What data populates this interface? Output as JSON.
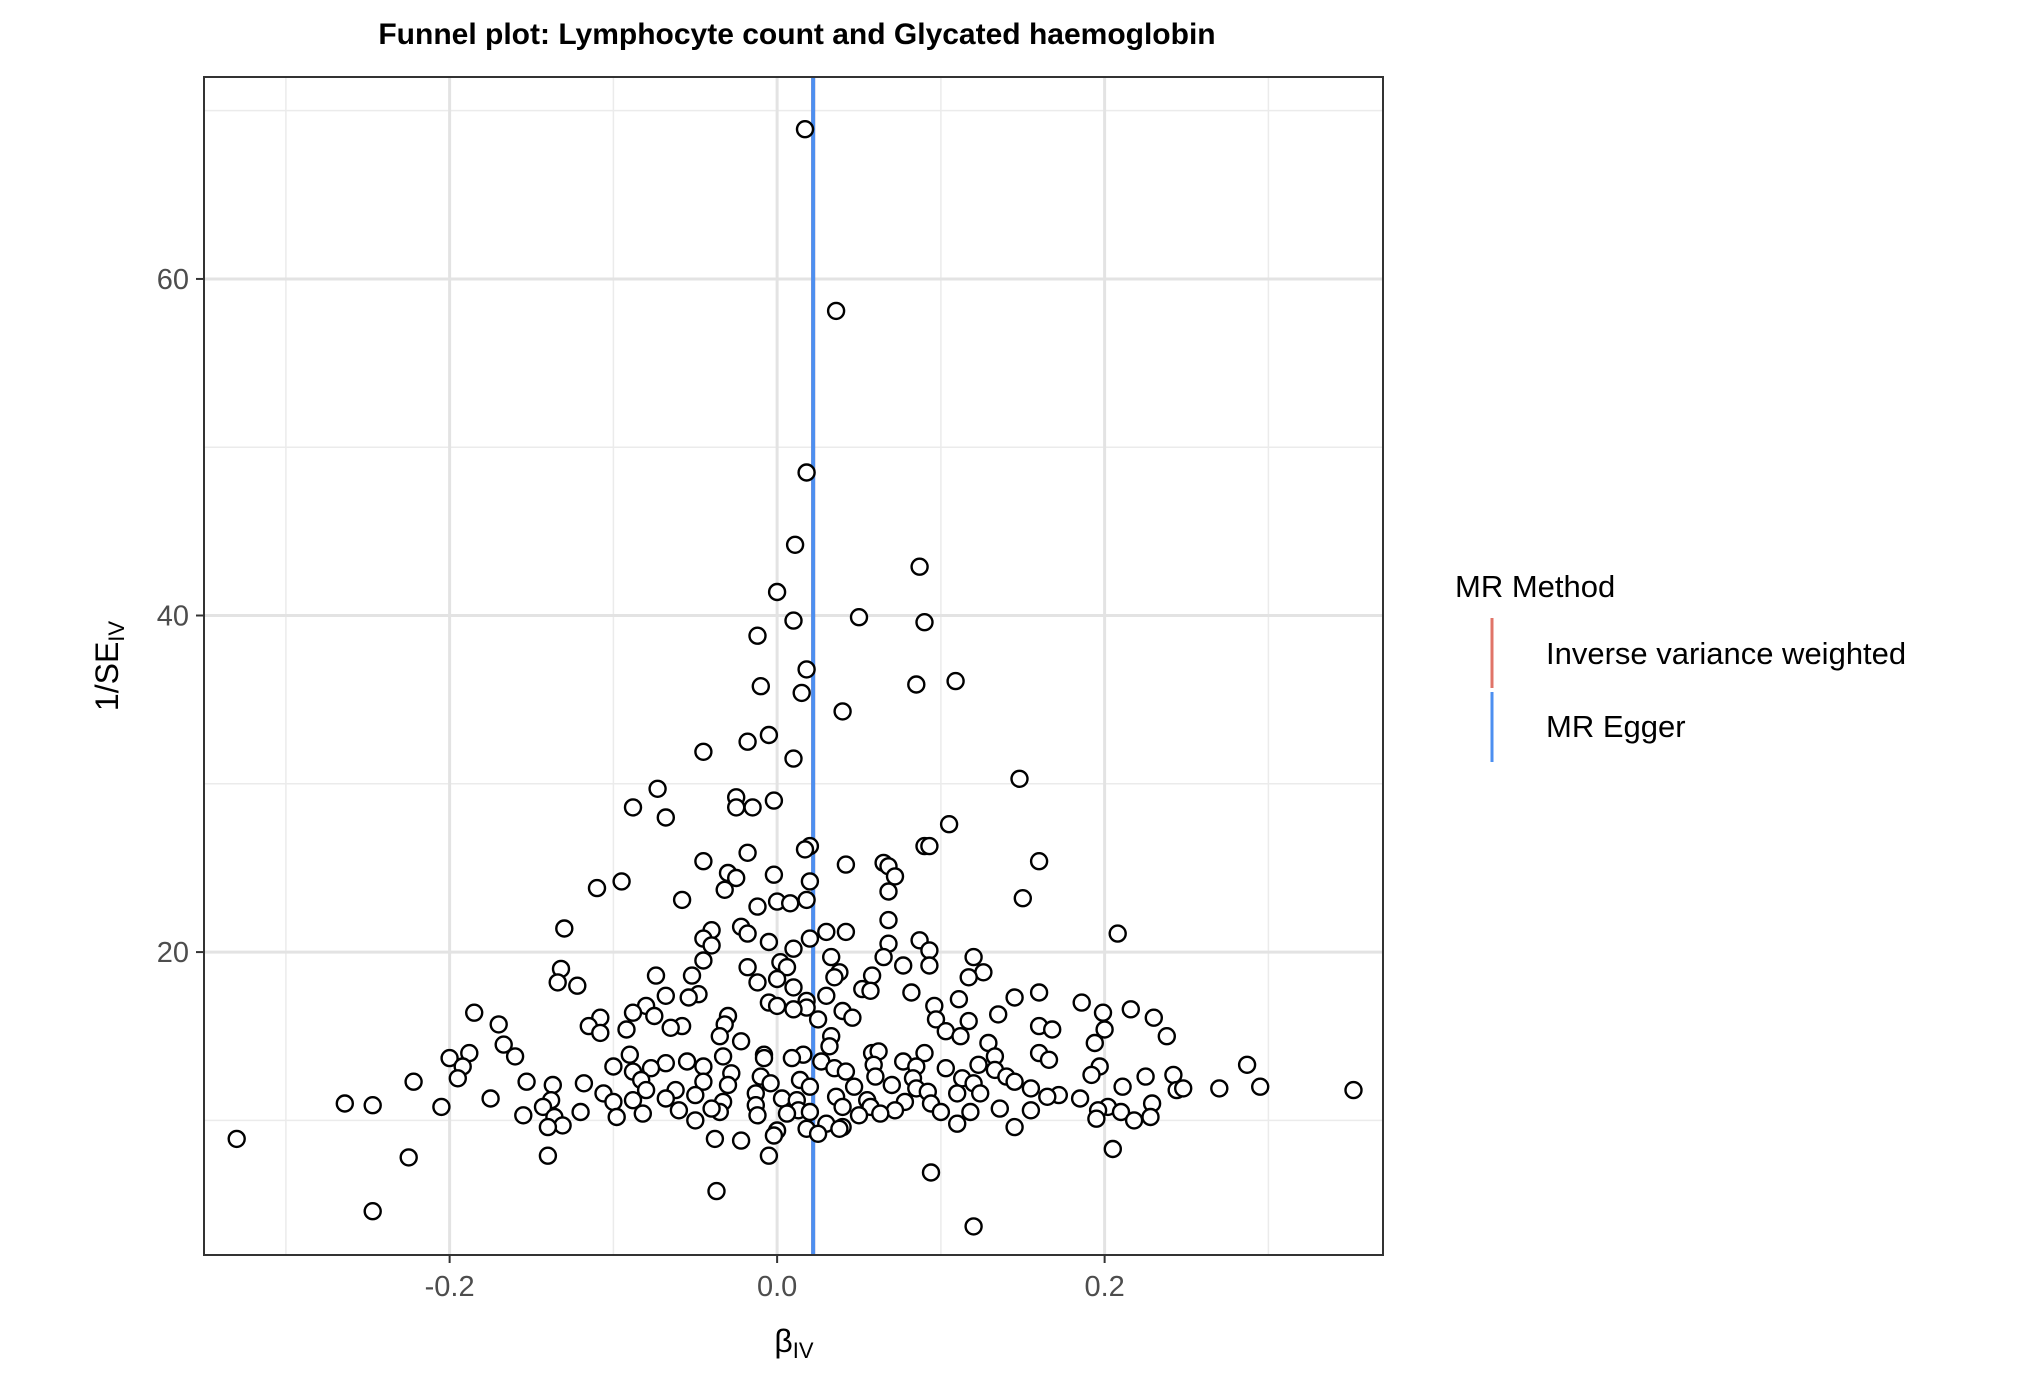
{
  "chart_data": {
    "type": "scatter",
    "title": "Funnel plot: Lymphocyte count and Glycated haemoglobin",
    "xlabel": {
      "main": "β",
      "sub": "IV"
    },
    "ylabel": {
      "main": "1/SE",
      "sub": "IV"
    },
    "xlim": [
      -0.35,
      0.37
    ],
    "ylim": [
      2,
      72
    ],
    "x_ticks": [
      -0.2,
      0.0,
      0.2
    ],
    "x_tick_labels": [
      "-0.2",
      "0.0",
      "0.2"
    ],
    "y_ticks": [
      20,
      40,
      60
    ],
    "y_tick_labels": [
      "20",
      "40",
      "60"
    ],
    "grid": true,
    "legend": {
      "title": "MR Method",
      "placement": "right",
      "entries": [
        {
          "label": "Inverse variance weighted",
          "color": "#e07468"
        },
        {
          "label": "MR Egger",
          "color": "#4d8ff0"
        }
      ]
    },
    "lines": [
      {
        "method": "Inverse variance weighted",
        "x": 0.022,
        "color": "#e07468"
      },
      {
        "method": "MR Egger",
        "x": 0.022,
        "color": "#4d8ff0"
      }
    ],
    "points": [
      [
        0.017,
        68.9
      ],
      [
        0.036,
        58.1
      ],
      [
        0.018,
        48.5
      ],
      [
        0.011,
        44.2
      ],
      [
        0.087,
        42.9
      ],
      [
        0.0,
        41.4
      ],
      [
        0.05,
        39.9
      ],
      [
        0.01,
        39.7
      ],
      [
        0.09,
        39.6
      ],
      [
        -0.012,
        38.8
      ],
      [
        0.018,
        36.8
      ],
      [
        0.109,
        36.1
      ],
      [
        -0.01,
        35.8
      ],
      [
        0.085,
        35.9
      ],
      [
        0.015,
        35.4
      ],
      [
        0.04,
        34.3
      ],
      [
        -0.005,
        32.9
      ],
      [
        -0.018,
        32.5
      ],
      [
        -0.045,
        31.9
      ],
      [
        0.01,
        31.5
      ],
      [
        0.148,
        30.3
      ],
      [
        -0.073,
        29.7
      ],
      [
        -0.025,
        29.2
      ],
      [
        -0.002,
        29.0
      ],
      [
        -0.088,
        28.6
      ],
      [
        -0.015,
        28.6
      ],
      [
        -0.025,
        28.6
      ],
      [
        -0.068,
        28.0
      ],
      [
        0.105,
        27.6
      ],
      [
        0.09,
        26.3
      ],
      [
        0.02,
        26.3
      ],
      [
        0.093,
        26.3
      ],
      [
        0.017,
        26.1
      ],
      [
        -0.018,
        25.9
      ],
      [
        0.16,
        25.4
      ],
      [
        -0.045,
        25.4
      ],
      [
        0.042,
        25.2
      ],
      [
        0.065,
        25.3
      ],
      [
        0.068,
        25.1
      ],
      [
        -0.03,
        24.7
      ],
      [
        -0.002,
        24.6
      ],
      [
        0.072,
        24.5
      ],
      [
        -0.025,
        24.4
      ],
      [
        -0.095,
        24.2
      ],
      [
        0.02,
        24.2
      ],
      [
        -0.11,
        23.8
      ],
      [
        0.068,
        23.6
      ],
      [
        -0.032,
        23.7
      ],
      [
        0.15,
        23.2
      ],
      [
        -0.058,
        23.1
      ],
      [
        0.018,
        23.1
      ],
      [
        0.0,
        23.0
      ],
      [
        0.008,
        22.9
      ],
      [
        -0.012,
        22.7
      ],
      [
        0.068,
        21.9
      ],
      [
        -0.13,
        21.4
      ],
      [
        -0.04,
        21.3
      ],
      [
        0.03,
        21.2
      ],
      [
        -0.022,
        21.5
      ],
      [
        0.042,
        21.2
      ],
      [
        0.208,
        21.1
      ],
      [
        -0.018,
        21.1
      ],
      [
        0.02,
        20.8
      ],
      [
        -0.045,
        20.8
      ],
      [
        0.087,
        20.7
      ],
      [
        -0.005,
        20.6
      ],
      [
        0.068,
        20.5
      ],
      [
        -0.04,
        20.4
      ],
      [
        0.01,
        20.2
      ],
      [
        0.093,
        20.1
      ],
      [
        0.033,
        19.7
      ],
      [
        0.12,
        19.7
      ],
      [
        -0.045,
        19.5
      ],
      [
        0.002,
        19.4
      ],
      [
        -0.018,
        19.1
      ],
      [
        0.065,
        19.7
      ],
      [
        0.077,
        19.2
      ],
      [
        -0.132,
        19.0
      ],
      [
        0.093,
        19.2
      ],
      [
        0.006,
        19.1
      ],
      [
        0.038,
        18.8
      ],
      [
        0.126,
        18.8
      ],
      [
        0.117,
        18.5
      ],
      [
        -0.074,
        18.6
      ],
      [
        0.058,
        18.6
      ],
      [
        0.035,
        18.5
      ],
      [
        -0.052,
        18.6
      ],
      [
        0.0,
        18.4
      ],
      [
        -0.134,
        18.2
      ],
      [
        -0.012,
        18.2
      ],
      [
        -0.122,
        18.0
      ],
      [
        0.052,
        17.8
      ],
      [
        0.01,
        17.9
      ],
      [
        0.057,
        17.7
      ],
      [
        0.082,
        17.6
      ],
      [
        0.16,
        17.6
      ],
      [
        0.03,
        17.4
      ],
      [
        -0.068,
        17.4
      ],
      [
        -0.048,
        17.5
      ],
      [
        0.145,
        17.3
      ],
      [
        -0.054,
        17.3
      ],
      [
        0.018,
        17.1
      ],
      [
        0.186,
        17.0
      ],
      [
        0.111,
        17.2
      ],
      [
        -0.005,
        17.0
      ],
      [
        0.0,
        16.8
      ],
      [
        0.018,
        16.7
      ],
      [
        0.096,
        16.8
      ],
      [
        -0.08,
        16.8
      ],
      [
        0.04,
        16.5
      ],
      [
        -0.185,
        16.4
      ],
      [
        0.216,
        16.6
      ],
      [
        0.01,
        16.6
      ],
      [
        0.199,
        16.4
      ],
      [
        -0.088,
        16.4
      ],
      [
        0.135,
        16.3
      ],
      [
        -0.03,
        16.2
      ],
      [
        -0.075,
        16.2
      ],
      [
        0.025,
        16.0
      ],
      [
        0.097,
        16.0
      ],
      [
        0.046,
        16.1
      ],
      [
        0.23,
        16.1
      ],
      [
        -0.108,
        16.1
      ],
      [
        0.117,
        15.9
      ],
      [
        -0.17,
        15.7
      ],
      [
        -0.032,
        15.7
      ],
      [
        -0.058,
        15.6
      ],
      [
        -0.115,
        15.6
      ],
      [
        0.16,
        15.6
      ],
      [
        -0.065,
        15.5
      ],
      [
        0.2,
        15.4
      ],
      [
        0.103,
        15.3
      ],
      [
        -0.092,
        15.4
      ],
      [
        0.168,
        15.4
      ],
      [
        -0.108,
        15.2
      ],
      [
        0.238,
        15.0
      ],
      [
        0.033,
        15.0
      ],
      [
        -0.035,
        15.0
      ],
      [
        0.112,
        15.0
      ],
      [
        0.194,
        14.6
      ],
      [
        0.129,
        14.6
      ],
      [
        -0.022,
        14.7
      ],
      [
        -0.167,
        14.5
      ],
      [
        0.058,
        14.0
      ],
      [
        0.09,
        14.0
      ],
      [
        -0.188,
        14.0
      ],
      [
        0.032,
        14.4
      ],
      [
        0.062,
        14.1
      ],
      [
        0.016,
        13.9
      ],
      [
        -0.008,
        13.9
      ],
      [
        0.133,
        13.8
      ],
      [
        0.16,
        14.0
      ],
      [
        -0.09,
        13.9
      ],
      [
        0.077,
        13.5
      ],
      [
        -0.16,
        13.8
      ],
      [
        -0.2,
        13.7
      ],
      [
        -0.033,
        13.8
      ],
      [
        -0.008,
        13.7
      ],
      [
        0.009,
        13.7
      ],
      [
        0.027,
        13.5
      ],
      [
        0.197,
        13.2
      ],
      [
        0.166,
        13.6
      ],
      [
        -0.068,
        13.4
      ],
      [
        -0.045,
        13.2
      ],
      [
        0.059,
        13.3
      ],
      [
        0.085,
        13.2
      ],
      [
        0.123,
        13.3
      ],
      [
        -0.077,
        13.1
      ],
      [
        -0.055,
        13.5
      ],
      [
        0.035,
        13.1
      ],
      [
        -0.192,
        13.2
      ],
      [
        0.287,
        13.3
      ],
      [
        -0.1,
        13.2
      ],
      [
        0.133,
        13.0
      ],
      [
        0.042,
        12.9
      ],
      [
        -0.028,
        12.8
      ],
      [
        0.103,
        13.1
      ],
      [
        -0.088,
        12.9
      ],
      [
        0.192,
        12.7
      ],
      [
        0.14,
        12.6
      ],
      [
        -0.01,
        12.6
      ],
      [
        0.225,
        12.6
      ],
      [
        0.242,
        12.7
      ],
      [
        0.06,
        12.6
      ],
      [
        0.083,
        12.5
      ],
      [
        -0.195,
        12.5
      ],
      [
        -0.222,
        12.3
      ],
      [
        -0.045,
        12.3
      ],
      [
        0.113,
        12.5
      ],
      [
        -0.153,
        12.3
      ],
      [
        -0.083,
        12.4
      ],
      [
        0.014,
        12.4
      ],
      [
        0.145,
        12.3
      ],
      [
        -0.118,
        12.2
      ],
      [
        0.07,
        12.1
      ],
      [
        0.12,
        12.2
      ],
      [
        -0.004,
        12.2
      ],
      [
        0.244,
        11.8
      ],
      [
        0.047,
        12.0
      ],
      [
        0.02,
        12.0
      ],
      [
        0.248,
        11.9
      ],
      [
        0.085,
        11.9
      ],
      [
        0.352,
        11.8
      ],
      [
        -0.137,
        12.1
      ],
      [
        0.155,
        11.9
      ],
      [
        -0.062,
        11.8
      ],
      [
        -0.03,
        12.1
      ],
      [
        0.211,
        12.0
      ],
      [
        0.092,
        11.7
      ],
      [
        0.11,
        11.6
      ],
      [
        0.27,
        11.9
      ],
      [
        -0.08,
        11.8
      ],
      [
        0.172,
        11.5
      ],
      [
        -0.106,
        11.6
      ],
      [
        -0.013,
        11.6
      ],
      [
        0.124,
        11.6
      ],
      [
        -0.05,
        11.5
      ],
      [
        0.036,
        11.4
      ],
      [
        0.003,
        11.3
      ],
      [
        -0.138,
        11.2
      ],
      [
        0.229,
        11.0
      ],
      [
        0.012,
        11.2
      ],
      [
        -0.088,
        11.2
      ],
      [
        0.165,
        11.4
      ],
      [
        0.055,
        11.2
      ],
      [
        -0.033,
        11.1
      ],
      [
        0.078,
        11.1
      ],
      [
        -0.068,
        11.3
      ],
      [
        0.185,
        11.3
      ],
      [
        0.295,
        12.0
      ],
      [
        0.057,
        10.8
      ],
      [
        0.094,
        11.0
      ],
      [
        -0.205,
        10.8
      ],
      [
        -0.013,
        10.9
      ],
      [
        0.202,
        10.8
      ],
      [
        -0.264,
        11.0
      ],
      [
        -0.1,
        11.1
      ],
      [
        0.04,
        10.8
      ],
      [
        -0.175,
        11.3
      ],
      [
        -0.143,
        10.8
      ],
      [
        -0.06,
        10.6
      ],
      [
        0.013,
        10.6
      ],
      [
        -0.035,
        10.5
      ],
      [
        0.196,
        10.6
      ],
      [
        0.21,
        10.5
      ],
      [
        0.072,
        10.6
      ],
      [
        0.136,
        10.7
      ],
      [
        0.155,
        10.6
      ],
      [
        -0.04,
        10.7
      ],
      [
        0.1,
        10.5
      ],
      [
        0.006,
        10.4
      ],
      [
        -0.247,
        10.9
      ],
      [
        -0.12,
        10.5
      ],
      [
        0.118,
        10.5
      ],
      [
        0.02,
        10.5
      ],
      [
        -0.082,
        10.4
      ],
      [
        0.063,
        10.4
      ],
      [
        -0.155,
        10.3
      ],
      [
        -0.136,
        10.2
      ],
      [
        -0.098,
        10.2
      ],
      [
        0.05,
        10.3
      ],
      [
        0.228,
        10.2
      ],
      [
        -0.012,
        10.3
      ],
      [
        -0.05,
        10.0
      ],
      [
        0.218,
        10.0
      ],
      [
        0.195,
        10.1
      ],
      [
        0.03,
        9.8
      ],
      [
        0.11,
        9.8
      ],
      [
        -0.131,
        9.7
      ],
      [
        -0.14,
        9.6
      ],
      [
        0.04,
        9.6
      ],
      [
        0.145,
        9.6
      ],
      [
        0.018,
        9.5
      ],
      [
        0.0,
        9.4
      ],
      [
        0.038,
        9.5
      ],
      [
        0.025,
        9.2
      ],
      [
        -0.002,
        9.1
      ],
      [
        -0.038,
        8.9
      ],
      [
        -0.022,
        8.8
      ],
      [
        -0.33,
        8.9
      ],
      [
        0.205,
        8.3
      ],
      [
        -0.225,
        7.8
      ],
      [
        -0.14,
        7.9
      ],
      [
        -0.005,
        7.9
      ],
      [
        0.094,
        6.9
      ],
      [
        -0.037,
        5.8
      ],
      [
        -0.247,
        4.6
      ],
      [
        0.12,
        3.7
      ]
    ]
  }
}
